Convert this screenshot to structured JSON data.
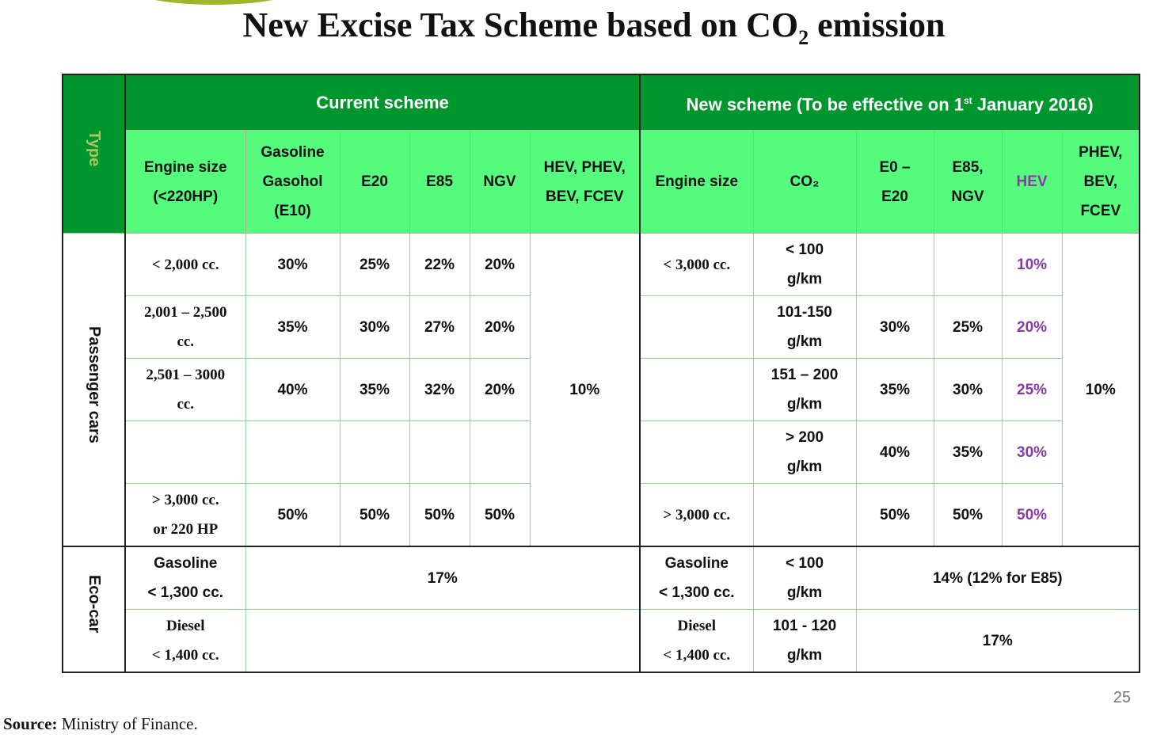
{
  "title": {
    "main": "New Excise Tax Scheme based on CO",
    "sub": "2",
    "tail": " emission"
  },
  "header": {
    "type": "Type",
    "current": "Current scheme",
    "new_pre": "New scheme (To be effective on 1",
    "new_sup": "st",
    "new_post": " January 2016)"
  },
  "current_cols": [
    "Engine size\n(<220HP)",
    "Gasoline\nGasohol\n(E10)",
    "E20",
    "E85",
    "NGV",
    "HEV, PHEV,\nBEV, FCEV"
  ],
  "new_cols": [
    "Engine size",
    "CO₂",
    "E0 –\nE20",
    "E85,\nNGV",
    "HEV",
    "PHEV,\nBEV,\nFCEV"
  ],
  "groups": {
    "passenger": "Passenger cars",
    "eco": "Eco-car"
  },
  "passenger": {
    "hybrid_current": "10%",
    "ev_new": "10%",
    "rows": [
      {
        "engine": "< 2,000 cc.",
        "gas": "30%",
        "e20": "25%",
        "e85": "22%",
        "ngv": "20%",
        "new_engine": "< 3,000 cc.",
        "co2": "< 100\ng/km",
        "e0": "",
        "e85ngv": "",
        "hev": "10%"
      },
      {
        "engine": "2,001 – 2,500\ncc.",
        "gas": "35%",
        "e20": "30%",
        "e85": "27%",
        "ngv": "20%",
        "new_engine": "",
        "co2": "101-150\ng/km",
        "e0": "30%",
        "e85ngv": "25%",
        "hev": "20%"
      },
      {
        "engine": "2,501 – 3000\ncc.",
        "gas": "40%",
        "e20": "35%",
        "e85": "32%",
        "ngv": "20%",
        "new_engine": "",
        "co2": "151 – 200\ng/km",
        "e0": "35%",
        "e85ngv": "30%",
        "hev": "25%"
      },
      {
        "engine": "",
        "gas": "",
        "e20": "",
        "e85": "",
        "ngv": "",
        "new_engine": "",
        "co2": "> 200\ng/km",
        "e0": "40%",
        "e85ngv": "35%",
        "hev": "30%"
      },
      {
        "engine": "> 3,000 cc.\nor 220 HP",
        "gas": "50%",
        "e20": "50%",
        "e85": "50%",
        "ngv": "50%",
        "new_engine": "> 3,000 cc.",
        "co2": "",
        "e0": "50%",
        "e85ngv": "50%",
        "hev": "50%"
      }
    ]
  },
  "eco": {
    "rows": [
      {
        "engine": "Gasoline\n< 1,300 cc.",
        "current": "17%",
        "new_engine": "Gasoline\n< 1,300 cc.",
        "co2": "< 100\ng/km",
        "new_rate": "14% (12% for E85)"
      },
      {
        "engine": "Diesel\n< 1,400 cc.",
        "current": "",
        "new_engine": "Diesel\n< 1,400 cc.",
        "co2": "101 - 120\ng/km",
        "new_rate": "17%"
      }
    ]
  },
  "page_number": "25",
  "source": {
    "label": "Source:",
    "text": " Ministry of Finance."
  }
}
